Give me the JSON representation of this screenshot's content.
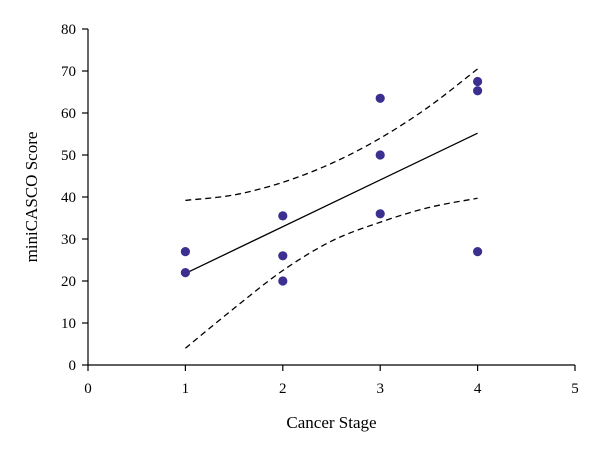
{
  "chart_data": {
    "type": "scatter",
    "title": "",
    "xlabel": "Cancer Stage",
    "ylabel": "miniCASCO Score",
    "xlim": [
      0,
      5
    ],
    "ylim": [
      0,
      80
    ],
    "x_ticks": [
      0,
      1,
      2,
      3,
      4,
      5
    ],
    "y_ticks": [
      0,
      10,
      20,
      30,
      40,
      50,
      60,
      70,
      80
    ],
    "grid": false,
    "legend": "none",
    "series": [
      {
        "type": "scatter",
        "color": "#3b2f8f",
        "points": [
          {
            "x": 1,
            "y": 27
          },
          {
            "x": 1,
            "y": 22
          },
          {
            "x": 2,
            "y": 35.5
          },
          {
            "x": 2,
            "y": 26
          },
          {
            "x": 2,
            "y": 20
          },
          {
            "x": 3,
            "y": 63.5
          },
          {
            "x": 3,
            "y": 50
          },
          {
            "x": 3,
            "y": 36
          },
          {
            "x": 4,
            "y": 67.5
          },
          {
            "x": 4,
            "y": 65.3
          },
          {
            "x": 4,
            "y": 27
          }
        ]
      },
      {
        "type": "regression-line",
        "style": "solid",
        "color": "#000000",
        "points": [
          {
            "x": 1,
            "y": 21.8
          },
          {
            "x": 4,
            "y": 55.2
          }
        ]
      },
      {
        "type": "confidence-band-upper",
        "style": "dashed",
        "color": "#000000",
        "points": [
          {
            "x": 1,
            "y": 39.2
          },
          {
            "x": 1.5,
            "y": 40.5
          },
          {
            "x": 2,
            "y": 43.5
          },
          {
            "x": 2.5,
            "y": 48
          },
          {
            "x": 3,
            "y": 54
          },
          {
            "x": 3.5,
            "y": 61.5
          },
          {
            "x": 4,
            "y": 70.5
          }
        ]
      },
      {
        "type": "confidence-band-lower",
        "style": "dashed",
        "color": "#000000",
        "points": [
          {
            "x": 1,
            "y": 4
          },
          {
            "x": 1.5,
            "y": 13.5
          },
          {
            "x": 2,
            "y": 22.5
          },
          {
            "x": 2.5,
            "y": 29.5
          },
          {
            "x": 3,
            "y": 34
          },
          {
            "x": 3.5,
            "y": 37.5
          },
          {
            "x": 4,
            "y": 39.7
          }
        ]
      }
    ]
  }
}
